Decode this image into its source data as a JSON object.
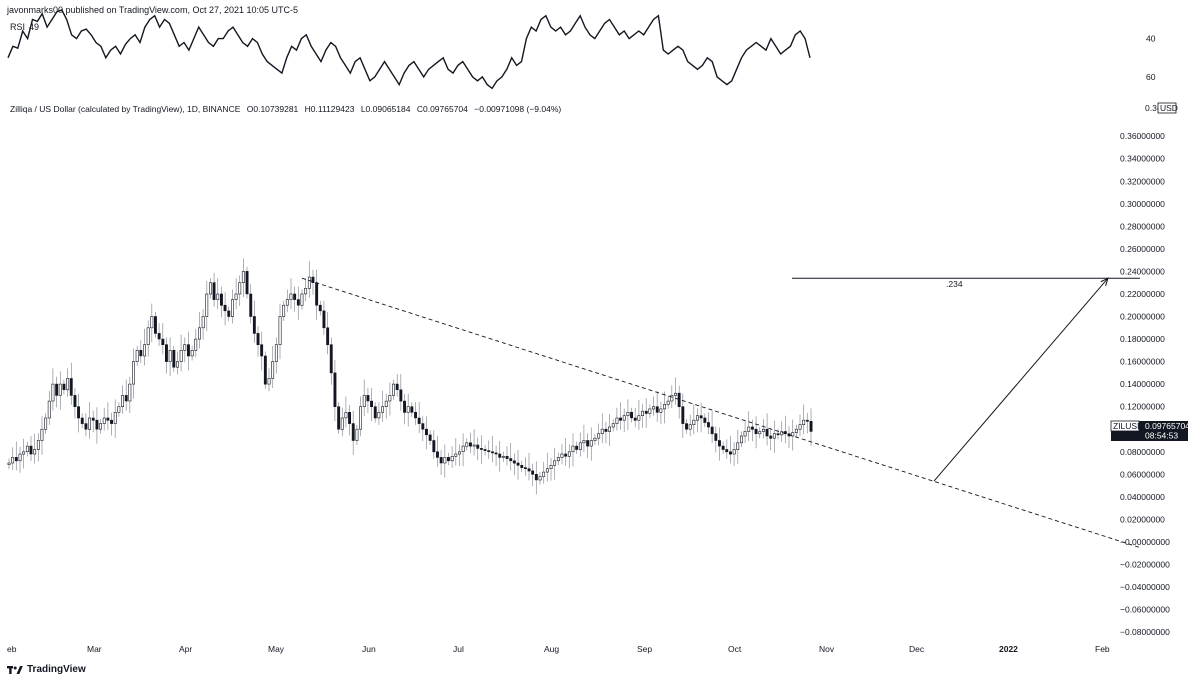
{
  "header": {
    "publisher": "javonmarks00 published on TradingView.com, Oct 27, 2021 10:05 UTC-5"
  },
  "legend": {
    "symbol": "Zilliqa / US Dollar (calculated by TradingView), 1D, BINANCE",
    "open": "O0.10739281",
    "high": "H0.11129423",
    "low": "L0.09065184",
    "close": "C0.09765704",
    "change": "−0.00971098 (−9.04%)"
  },
  "rsi": {
    "label": "RSI",
    "value": "49",
    "ticks": [
      "60",
      "40"
    ],
    "ylim": [
      29,
      76
    ]
  },
  "price_badge": {
    "symbol": "ZILUSD",
    "price": "0.09765704",
    "countdown": "08:54:53"
  },
  "top_axis_label": {
    "clipped": "0.3(",
    "currency": "USD"
  },
  "annotation_label": ".234",
  "footer": {
    "brand": "TradingView"
  },
  "colors": {
    "line": "#131722",
    "candle_up": "#ffffff",
    "candle_down": "#131722",
    "badge_bg": "#131722"
  },
  "chart_data": [
    {
      "type": "line",
      "title": "RSI",
      "ylim": [
        29,
        76
      ],
      "yticks": [
        40,
        60
      ],
      "series": [
        {
          "name": "RSI",
          "values": [
            50,
            56,
            55,
            64,
            60,
            70,
            69,
            73,
            66,
            70,
            74,
            75,
            70,
            62,
            60,
            64,
            65,
            62,
            58,
            56,
            50,
            54,
            56,
            52,
            57,
            60,
            62,
            58,
            66,
            70,
            72,
            66,
            70,
            68,
            62,
            56,
            58,
            54,
            60,
            66,
            62,
            58,
            56,
            60,
            60,
            64,
            66,
            62,
            58,
            56,
            60,
            58,
            52,
            48,
            46,
            44,
            42,
            50,
            56,
            54,
            60,
            62,
            56,
            52,
            48,
            54,
            58,
            56,
            50,
            46,
            42,
            48,
            50,
            44,
            38,
            40,
            44,
            48,
            44,
            40,
            36,
            42,
            46,
            48,
            44,
            40,
            44,
            46,
            48,
            50,
            44,
            42,
            46,
            48,
            44,
            40,
            38,
            40,
            36,
            34,
            38,
            40,
            44,
            50,
            46,
            48,
            60,
            66,
            64,
            70,
            72,
            66,
            64,
            66,
            62,
            64,
            68,
            72,
            66,
            62,
            60,
            64,
            68,
            70,
            66,
            62,
            64,
            60,
            62,
            64,
            62,
            66,
            70,
            72,
            54,
            52,
            54,
            56,
            54,
            48,
            46,
            44,
            46,
            50,
            48,
            40,
            38,
            36,
            38,
            44,
            50,
            54,
            56,
            58,
            56,
            54,
            60,
            56,
            52,
            54,
            56,
            62,
            64,
            60,
            50
          ],
          "x_start": "Feb 2021",
          "x_end": "Oct 27, 2021"
        }
      ]
    },
    {
      "type": "candlestick",
      "title": "Zilliqa / US Dollar (calculated by TradingView), 1D, BINANCE",
      "x_ticks": [
        "eb",
        "Mar",
        "Apr",
        "May",
        "Jun",
        "Jul",
        "Aug",
        "Sep",
        "Oct",
        "Nov",
        "Dec",
        "2022",
        "Feb"
      ],
      "y_ticks": [
        "0.36000000",
        "0.34000000",
        "0.32000000",
        "0.30000000",
        "0.28000000",
        "0.26000000",
        "0.24000000",
        "0.22000000",
        "0.20000000",
        "0.18000000",
        "0.16000000",
        "0.14000000",
        "0.12000000",
        "0.10000000",
        "0.08000000",
        "0.06000000",
        "0.04000000",
        "0.02000000",
        "−0.00000000",
        "−0.02000000",
        "−0.04000000",
        "−0.06000000",
        "−0.08000000"
      ],
      "ylim": [
        -0.087,
        0.385
      ],
      "close_path": [
        0.07,
        0.075,
        0.072,
        0.078,
        0.08,
        0.085,
        0.078,
        0.082,
        0.09,
        0.1,
        0.11,
        0.125,
        0.14,
        0.13,
        0.14,
        0.135,
        0.145,
        0.13,
        0.12,
        0.11,
        0.105,
        0.1,
        0.11,
        0.108,
        0.1,
        0.105,
        0.11,
        0.108,
        0.105,
        0.115,
        0.12,
        0.13,
        0.125,
        0.14,
        0.16,
        0.17,
        0.165,
        0.175,
        0.19,
        0.2,
        0.185,
        0.18,
        0.175,
        0.16,
        0.17,
        0.155,
        0.16,
        0.17,
        0.175,
        0.165,
        0.17,
        0.18,
        0.19,
        0.2,
        0.22,
        0.23,
        0.215,
        0.22,
        0.21,
        0.205,
        0.2,
        0.215,
        0.22,
        0.23,
        0.24,
        0.22,
        0.2,
        0.185,
        0.175,
        0.165,
        0.14,
        0.145,
        0.16,
        0.175,
        0.2,
        0.21,
        0.215,
        0.22,
        0.215,
        0.21,
        0.22,
        0.225,
        0.235,
        0.23,
        0.21,
        0.205,
        0.19,
        0.175,
        0.15,
        0.12,
        0.1,
        0.11,
        0.115,
        0.105,
        0.09,
        0.1,
        0.12,
        0.13,
        0.125,
        0.12,
        0.11,
        0.115,
        0.12,
        0.125,
        0.13,
        0.14,
        0.135,
        0.125,
        0.115,
        0.12,
        0.115,
        0.11,
        0.105,
        0.1,
        0.095,
        0.09,
        0.08,
        0.075,
        0.07,
        0.075,
        0.072,
        0.076,
        0.078,
        0.08,
        0.085,
        0.088,
        0.085,
        0.086,
        0.083,
        0.082,
        0.081,
        0.08,
        0.079,
        0.078,
        0.075,
        0.076,
        0.074,
        0.072,
        0.07,
        0.068,
        0.066,
        0.065,
        0.063,
        0.06,
        0.055,
        0.058,
        0.062,
        0.065,
        0.068,
        0.072,
        0.075,
        0.078,
        0.076,
        0.08,
        0.085,
        0.082,
        0.088,
        0.09,
        0.085,
        0.09,
        0.092,
        0.096,
        0.1,
        0.098,
        0.102,
        0.105,
        0.11,
        0.108,
        0.112,
        0.115,
        0.11,
        0.108,
        0.112,
        0.116,
        0.114,
        0.118,
        0.12,
        0.115,
        0.118,
        0.122,
        0.125,
        0.13,
        0.132,
        0.12,
        0.105,
        0.1,
        0.104,
        0.108,
        0.112,
        0.11,
        0.106,
        0.102,
        0.096,
        0.09,
        0.085,
        0.082,
        0.08,
        0.078,
        0.082,
        0.088,
        0.094,
        0.098,
        0.102,
        0.1,
        0.096,
        0.098,
        0.1,
        0.094,
        0.092,
        0.096,
        0.095,
        0.098,
        0.096,
        0.094,
        0.097,
        0.1,
        0.104,
        0.108,
        0.107,
        0.098
      ],
      "series": [],
      "trendline": {
        "from": [
          "May 2021",
          0.234
        ],
        "to": [
          "Jan 2022",
          -0.005
        ]
      },
      "horizontal_line": {
        "label": ".234",
        "value": 0.234
      },
      "projection_arrow": {
        "from": [
          "Dec 2021",
          0.054
        ],
        "to": [
          "Feb 2022",
          0.234
        ]
      }
    }
  ]
}
